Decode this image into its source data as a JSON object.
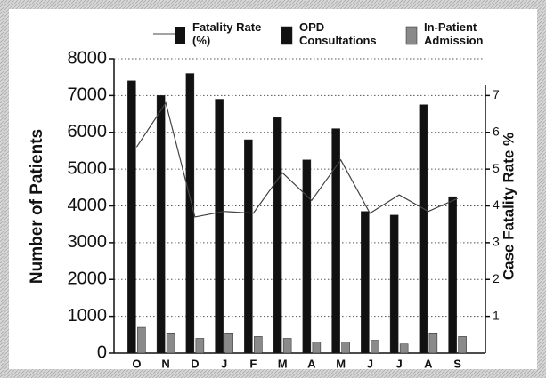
{
  "chart_data": {
    "type": "bar",
    "y_label": "Number of Patients",
    "y2_label": "Case Fatality Rate %",
    "categories": [
      "O",
      "N",
      "D",
      "J",
      "F",
      "M",
      "A",
      "M",
      "J",
      "J",
      "A",
      "S"
    ],
    "series": [
      {
        "name": "Fatality Rate (%)",
        "type": "line",
        "axis": "y2",
        "color": "#444444",
        "values": [
          5.6,
          6.8,
          3.7,
          3.85,
          3.8,
          4.9,
          4.15,
          5.25,
          3.8,
          4.3,
          3.85,
          4.2
        ]
      },
      {
        "name": "OPD Consultations",
        "type": "bar",
        "color": "#111111",
        "values": [
          7400,
          7000,
          7600,
          6900,
          5800,
          6400,
          5250,
          6100,
          3850,
          3750,
          6750,
          4250
        ]
      },
      {
        "name": "In-Patient Admission",
        "type": "bar",
        "color": "#8a8a8a",
        "values": [
          700,
          550,
          400,
          550,
          450,
          400,
          300,
          300,
          350,
          250,
          550,
          450
        ]
      }
    ],
    "ylim": [
      0,
      8000
    ],
    "yticks": [
      0,
      1000,
      2000,
      3000,
      4000,
      5000,
      6000,
      7000,
      8000
    ],
    "y2lim": [
      0,
      8
    ],
    "y2ticks": [
      1,
      2,
      3,
      4,
      5,
      6,
      7
    ],
    "grid": true
  }
}
